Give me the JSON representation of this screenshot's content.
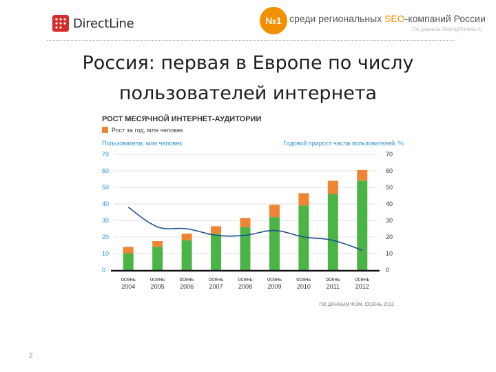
{
  "header": {
    "logo_text": "DirectLine",
    "badge": "№1",
    "tagline_prefix": "среди региональных ",
    "tagline_seo": "SEO",
    "tagline_suffix": "-компаний России",
    "source_note": "По данным RatingRuneta.ru"
  },
  "slide": {
    "title_line1": "Россия: первая в Европе по числу",
    "title_line2": "пользователей интернета",
    "page_number": "2"
  },
  "colors": {
    "users": "#4bb447",
    "growth": "#ef8532",
    "line": "#1f4f8f",
    "axis_left": "#2f8fcf",
    "accent": "#f29100"
  },
  "chart_data": {
    "type": "bar",
    "title": "РОСТ МЕСЯЧНОЙ ИНТЕРНЕТ-АУДИТОРИИ",
    "legend": "Рост за год, млн человек",
    "ylabel_left": "Пользователи, млн человек",
    "ylabel_right": "Годовой прирост числа пользователей, %",
    "source": "ПО ДАННЫМ ФОМ, ОСЕНЬ 2012",
    "categories": [
      [
        "осень",
        "2004"
      ],
      [
        "осень",
        "2005"
      ],
      [
        "осень",
        "2006"
      ],
      [
        "осень",
        "2007"
      ],
      [
        "осень",
        "2008"
      ],
      [
        "осень",
        "2009"
      ],
      [
        "осень",
        "2010"
      ],
      [
        "осень",
        "2011"
      ],
      [
        "осень",
        "2012"
      ]
    ],
    "ylim": [
      0,
      70
    ],
    "yticks": [
      0,
      10,
      20,
      30,
      40,
      50,
      60,
      70
    ],
    "y2lim": [
      0,
      70
    ],
    "y2ticks": [
      0,
      10,
      20,
      30,
      40,
      50,
      60,
      70
    ],
    "series": [
      {
        "name": "",
        "kind": "bar",
        "values": [
          10,
          14,
          18,
          22,
          26,
          32,
          39,
          46,
          54
        ]
      },
      {
        "name": "Рост за год, млн человек",
        "kind": "bar-stack",
        "values": [
          4,
          3.5,
          4,
          4.5,
          5.5,
          7.5,
          7.5,
          8,
          6.5
        ]
      },
      {
        "name": "",
        "kind": "line",
        "axis": "right",
        "values": [
          38,
          26,
          25,
          21,
          21,
          24,
          20,
          18,
          12
        ]
      }
    ]
  }
}
